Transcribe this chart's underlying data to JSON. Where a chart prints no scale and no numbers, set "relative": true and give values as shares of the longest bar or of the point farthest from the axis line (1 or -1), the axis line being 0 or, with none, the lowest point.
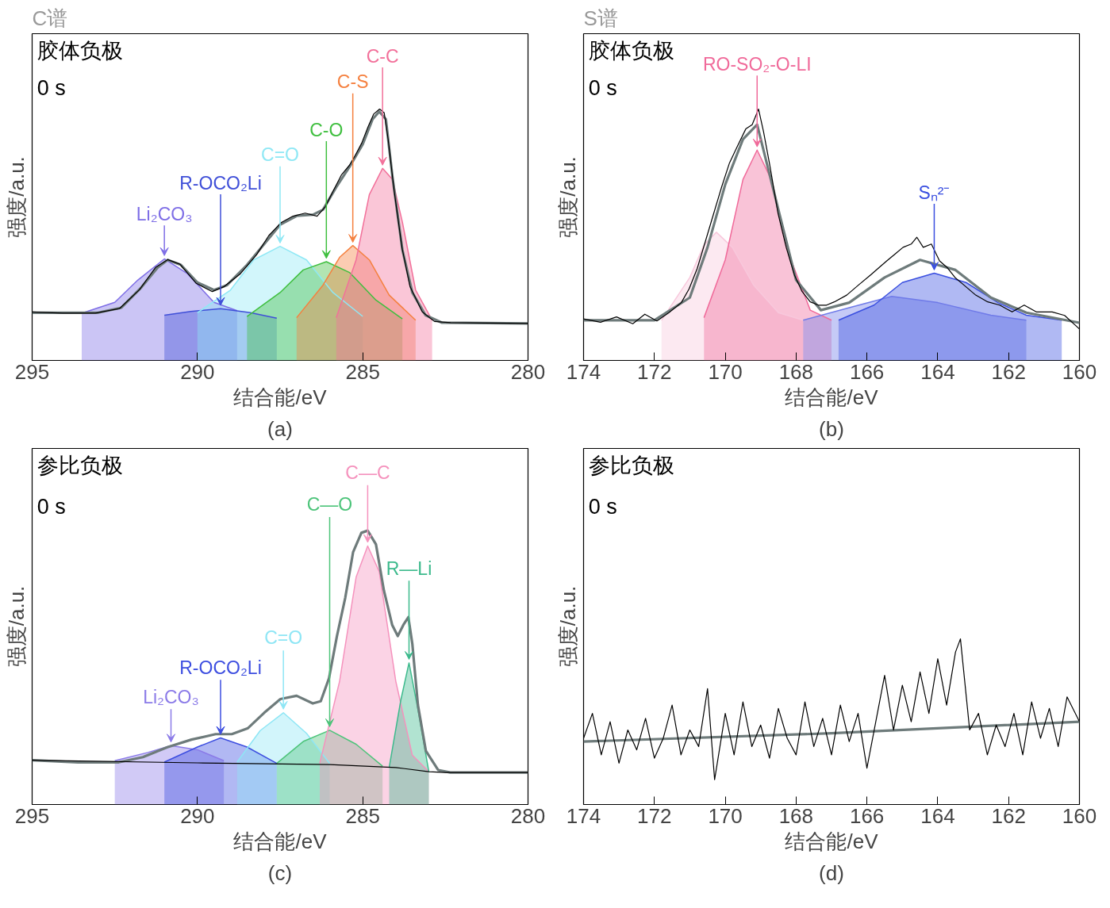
{
  "chart_data": [
    {
      "type": "line",
      "title": "C谱",
      "xlabel": "结合能/eV",
      "ylabel": "强度/a.u.",
      "relative": true,
      "xlim": [
        295,
        280
      ],
      "xticks": [
        295,
        290,
        285,
        280
      ],
      "series": [
        {
          "type": "area",
          "name": "Li₂CO₃",
          "color": "#7e6ee6",
          "x": [
            293.5,
            292.5,
            291.8,
            291.0,
            290.3,
            289.5,
            288.8
          ],
          "values": [
            0.188,
            0.231,
            0.32,
            0.404,
            0.345,
            0.231,
            0.198
          ]
        },
        {
          "type": "area",
          "name": "R-OCO₂Li",
          "color": "#3f4fd8",
          "x": [
            291.0,
            290.2,
            289.3,
            288.4,
            287.6
          ],
          "values": [
            0.18,
            0.195,
            0.206,
            0.19,
            0.168
          ]
        },
        {
          "type": "area",
          "name": "C=O",
          "color": "#8fe8f5",
          "x": [
            290.0,
            289.0,
            288.3,
            287.5,
            286.7,
            285.9,
            285.0
          ],
          "values": [
            0.19,
            0.28,
            0.4,
            0.454,
            0.4,
            0.27,
            0.175
          ]
        },
        {
          "type": "area",
          "name": "C-O",
          "color": "#3fbf3f",
          "x": [
            288.5,
            287.5,
            286.8,
            286.1,
            285.4,
            284.6,
            283.8
          ],
          "values": [
            0.175,
            0.27,
            0.36,
            0.393,
            0.35,
            0.24,
            0.165
          ]
        },
        {
          "type": "area",
          "name": "C-S",
          "color": "#f5803f",
          "x": [
            287.0,
            286.2,
            285.7,
            285.3,
            284.8,
            284.2,
            283.4
          ],
          "values": [
            0.17,
            0.3,
            0.41,
            0.457,
            0.4,
            0.26,
            0.16
          ]
        },
        {
          "type": "area",
          "name": "C-C",
          "color": "#f2709a",
          "x": [
            285.8,
            285.2,
            284.8,
            284.4,
            284.1,
            283.8,
            283.4,
            282.9
          ],
          "values": [
            0.17,
            0.4,
            0.66,
            0.764,
            0.72,
            0.55,
            0.28,
            0.16
          ]
        },
        {
          "color": "#000000",
          "x": [
            295.0,
            294.07,
            293.09,
            292.36,
            291.75,
            291.26,
            290.9,
            290.53,
            290.04,
            289.55,
            289.19,
            288.7,
            288.21,
            287.84,
            287.47,
            287.11,
            286.74,
            286.38,
            286.13,
            285.89,
            285.64,
            285.4,
            285.23,
            285.03,
            284.84,
            284.67,
            284.49,
            284.35,
            284.23,
            284.05,
            283.81,
            283.57,
            283.2,
            282.83,
            282.34,
            280.0
          ],
          "values": [
            0.193,
            0.188,
            0.188,
            0.206,
            0.282,
            0.371,
            0.401,
            0.383,
            0.307,
            0.274,
            0.294,
            0.345,
            0.421,
            0.497,
            0.548,
            0.574,
            0.586,
            0.574,
            0.612,
            0.675,
            0.739,
            0.777,
            0.815,
            0.865,
            0.929,
            0.98,
            1.0,
            0.985,
            0.878,
            0.675,
            0.447,
            0.294,
            0.193,
            0.155,
            0.15,
            0.147
          ]
        },
        {
          "color": "#6e7b7b",
          "x": [
            295,
            293,
            292.3,
            291.7,
            291.2,
            290.9,
            290.5,
            290,
            289.5,
            289.1,
            288.5,
            288,
            287.5,
            287,
            286.5,
            286.2,
            285.8,
            285.4,
            285,
            284.7,
            284.5,
            284.3,
            284.1,
            283.8,
            283.5,
            283.1,
            282.6,
            280
          ],
          "values": [
            0.19,
            0.19,
            0.21,
            0.29,
            0.37,
            0.4,
            0.38,
            0.31,
            0.28,
            0.3,
            0.38,
            0.46,
            0.54,
            0.575,
            0.58,
            0.6,
            0.69,
            0.77,
            0.86,
            0.96,
            0.99,
            0.96,
            0.73,
            0.44,
            0.27,
            0.18,
            0.15,
            0.147
          ]
        }
      ],
      "annotations": [
        "胶体负极",
        "0 s",
        "(a)"
      ]
    },
    {
      "type": "line",
      "title": "S谱",
      "xlabel": "结合能/eV",
      "ylabel": "强度/a.u.",
      "relative": true,
      "xlim": [
        174,
        160
      ],
      "xticks": [
        174,
        172,
        170,
        168,
        166,
        164,
        162,
        160
      ],
      "series": [
        {
          "type": "area",
          "color": "#f8c8dc",
          "x": [
            171.8,
            171.0,
            170.6,
            170.25,
            169.8,
            169.2,
            168.5,
            167.8
          ],
          "values": [
            0.16,
            0.33,
            0.46,
            0.51,
            0.45,
            0.3,
            0.19,
            0.16
          ]
        },
        {
          "type": "area",
          "name": "RO-SO₂-O-LI",
          "color": "#f06a9a",
          "x": [
            170.6,
            170.0,
            169.5,
            169.1,
            168.7,
            168.2,
            167.6,
            167.0
          ],
          "values": [
            0.17,
            0.4,
            0.72,
            0.837,
            0.72,
            0.42,
            0.2,
            0.16
          ]
        },
        {
          "type": "area",
          "color": "#6f7ae8",
          "x": [
            167.8,
            166.5,
            165.3,
            164.0,
            162.5,
            161.5
          ],
          "values": [
            0.16,
            0.21,
            0.255,
            0.23,
            0.18,
            0.16
          ]
        },
        {
          "type": "area",
          "name": "Sₙ²⁻",
          "color": "#3a4fe0",
          "x": [
            166.8,
            165.8,
            165.0,
            164.1,
            163.2,
            162.3,
            161.5,
            160.5
          ],
          "values": [
            0.16,
            0.22,
            0.31,
            0.347,
            0.31,
            0.23,
            0.18,
            0.16
          ]
        },
        {
          "color": "#000000",
          "x": [
            174.0,
            173.52,
            173.07,
            172.61,
            172.27,
            171.93,
            171.59,
            171.24,
            171.02,
            170.79,
            170.56,
            170.33,
            170.1,
            169.88,
            169.65,
            169.42,
            169.24,
            169.06,
            168.92,
            168.74,
            168.51,
            168.28,
            168.05,
            167.83,
            167.6,
            167.37,
            167.14,
            166.92,
            166.57,
            166.23,
            165.89,
            165.66,
            165.44,
            165.21,
            164.98,
            164.75,
            164.59,
            164.41,
            164.18,
            163.95,
            163.73,
            163.5,
            163.27,
            162.93,
            162.59,
            162.25,
            161.9,
            161.56,
            161.22,
            160.77,
            160.42,
            160.0
          ],
          "values": [
            0.165,
            0.152,
            0.173,
            0.146,
            0.184,
            0.157,
            0.19,
            0.23,
            0.285,
            0.366,
            0.474,
            0.583,
            0.691,
            0.786,
            0.854,
            0.921,
            0.938,
            1.0,
            0.911,
            0.775,
            0.585,
            0.45,
            0.341,
            0.274,
            0.233,
            0.22,
            0.22,
            0.233,
            0.26,
            0.301,
            0.341,
            0.369,
            0.396,
            0.423,
            0.45,
            0.463,
            0.49,
            0.45,
            0.463,
            0.396,
            0.369,
            0.328,
            0.301,
            0.26,
            0.233,
            0.22,
            0.193,
            0.22,
            0.193,
            0.193,
            0.179,
            0.125
          ]
        },
        {
          "color": "#6e7b7b",
          "x": [
            174,
            172,
            171,
            170.5,
            170,
            169.5,
            169.1,
            168.5,
            168,
            167.3,
            166.5,
            165.5,
            164.5,
            163.5,
            162.5,
            161.5,
            160
          ],
          "values": [
            0.16,
            0.16,
            0.25,
            0.45,
            0.7,
            0.88,
            0.938,
            0.6,
            0.32,
            0.2,
            0.23,
            0.33,
            0.4,
            0.36,
            0.25,
            0.19,
            0.15
          ]
        }
      ],
      "annotations": [
        "胶体负极",
        "0 s",
        "(b)"
      ]
    },
    {
      "type": "line",
      "xlabel": "结合能/eV",
      "ylabel": "强度/a.u.",
      "relative": true,
      "xlim": [
        295,
        280
      ],
      "xticks": [
        295,
        290,
        285,
        280
      ],
      "series": [
        {
          "type": "area",
          "name": "Li₂CO₃",
          "color": "#8b7be8",
          "x": [
            292.5,
            291.5,
            290.8,
            290.0,
            289.2
          ],
          "values": [
            0.16,
            0.19,
            0.215,
            0.2,
            0.16
          ]
        },
        {
          "type": "area",
          "name": "R-OCO₂Li",
          "color": "#3d4ee0",
          "x": [
            291.0,
            290.0,
            289.3,
            288.5,
            287.6
          ],
          "values": [
            0.155,
            0.21,
            0.243,
            0.21,
            0.15
          ]
        },
        {
          "type": "area",
          "name": "C=O",
          "color": "#8ee6f5",
          "x": [
            288.8,
            288.1,
            287.4,
            286.7,
            286.0
          ],
          "values": [
            0.155,
            0.27,
            0.335,
            0.26,
            0.15
          ]
        },
        {
          "type": "area",
          "name": "C—O",
          "color": "#4dc47a",
          "x": [
            287.6,
            286.8,
            286.0,
            285.2,
            284.4
          ],
          "values": [
            0.15,
            0.23,
            0.271,
            0.22,
            0.14
          ]
        },
        {
          "type": "area",
          "name": "C—C",
          "color": "#f592bd",
          "x": [
            286.3,
            285.7,
            285.2,
            284.85,
            284.5,
            284.0,
            283.5,
            283.0
          ],
          "values": [
            0.15,
            0.45,
            0.83,
            0.944,
            0.85,
            0.45,
            0.18,
            0.12
          ]
        },
        {
          "type": "area",
          "name": "R—Li",
          "color": "#3cba8c",
          "x": [
            284.2,
            283.85,
            283.6,
            283.35,
            283.0
          ],
          "values": [
            0.135,
            0.38,
            0.517,
            0.36,
            0.12
          ]
        },
        {
          "color": "#000000",
          "x": [
            295,
            290,
            286,
            284,
            283,
            282.5,
            280
          ],
          "values": [
            0.162,
            0.152,
            0.146,
            0.135,
            0.12,
            0.117,
            0.117
          ]
        },
        {
          "color": "#6e7b7b",
          "x": [
            295.0,
            293.61,
            292.38,
            291.65,
            290.91,
            290.18,
            289.45,
            288.96,
            288.47,
            287.98,
            287.49,
            287.0,
            286.51,
            286.27,
            286.02,
            285.78,
            285.53,
            285.29,
            285.04,
            284.85,
            284.6,
            284.36,
            284.11,
            283.94,
            283.77,
            283.62,
            283.5,
            283.33,
            283.09,
            282.72,
            282.35,
            280.0
          ],
          "values": [
            0.162,
            0.154,
            0.154,
            0.173,
            0.209,
            0.237,
            0.257,
            0.257,
            0.279,
            0.335,
            0.385,
            0.397,
            0.369,
            0.377,
            0.461,
            0.615,
            0.754,
            0.922,
            0.992,
            1.0,
            0.95,
            0.782,
            0.656,
            0.615,
            0.656,
            0.684,
            0.587,
            0.363,
            0.196,
            0.126,
            0.117,
            0.117
          ]
        }
      ],
      "annotations": [
        "参比负极",
        "0 s",
        "(c)"
      ]
    },
    {
      "type": "line",
      "xlabel": "结合能/eV",
      "ylabel": "强度/a.u.",
      "relative": true,
      "xlim": [
        174,
        160
      ],
      "xticks": [
        174,
        172,
        170,
        168,
        166,
        164,
        162,
        160
      ],
      "series": [
        {
          "color": "#000000",
          "x": [
            174.0,
            173.75,
            173.5,
            173.25,
            173.0,
            172.75,
            172.5,
            172.25,
            172.0,
            171.75,
            171.5,
            171.25,
            171.0,
            170.75,
            170.5,
            170.3,
            170.0,
            169.75,
            169.5,
            169.25,
            169.0,
            168.75,
            168.5,
            168.25,
            168.0,
            167.75,
            167.5,
            167.25,
            167.0,
            166.75,
            166.5,
            166.25,
            166.0,
            165.75,
            165.5,
            165.25,
            165.0,
            164.75,
            164.5,
            164.25,
            164.0,
            163.75,
            163.5,
            163.36,
            163.1,
            162.85,
            162.6,
            162.35,
            162.1,
            161.85,
            161.6,
            161.35,
            161.1,
            160.85,
            160.6,
            160.35,
            160.0
          ],
          "values": [
            0.4,
            0.55,
            0.3,
            0.5,
            0.25,
            0.45,
            0.33,
            0.52,
            0.28,
            0.4,
            0.6,
            0.3,
            0.45,
            0.35,
            0.7,
            0.15,
            0.55,
            0.3,
            0.62,
            0.35,
            0.48,
            0.28,
            0.58,
            0.4,
            0.3,
            0.62,
            0.35,
            0.52,
            0.3,
            0.6,
            0.38,
            0.55,
            0.22,
            0.5,
            0.78,
            0.45,
            0.72,
            0.5,
            0.8,
            0.55,
            0.88,
            0.6,
            0.92,
            1.0,
            0.45,
            0.55,
            0.3,
            0.48,
            0.35,
            0.55,
            0.3,
            0.62,
            0.4,
            0.58,
            0.35,
            0.65,
            0.5
          ]
        },
        {
          "color": "#6e7b7b",
          "x": [
            174,
            167,
            160
          ],
          "values": [
            0.38,
            0.43,
            0.5
          ]
        }
      ],
      "annotations": [
        "参比负极",
        "0 s",
        "(d)"
      ]
    }
  ]
}
